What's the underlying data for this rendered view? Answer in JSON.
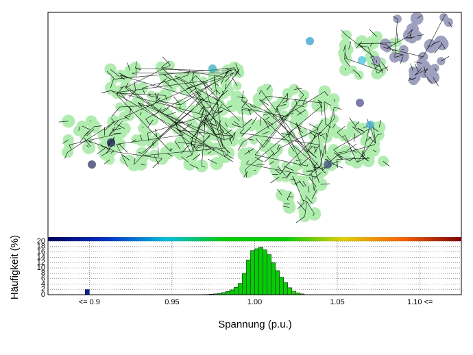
{
  "chart_data": {
    "type": "histogram",
    "xlabel": "Spannung (p.u.)",
    "ylabel": "Häufigkeit (%)",
    "bins": [
      0.8975,
      0.9,
      0.9025,
      0.905,
      0.9075,
      0.91,
      0.9125,
      0.915,
      0.9175,
      0.92,
      0.9225,
      0.925,
      0.9275,
      0.93,
      0.9325,
      0.935,
      0.9375,
      0.94,
      0.9425,
      0.945,
      0.9475,
      0.95,
      0.9525,
      0.955,
      0.9575,
      0.96,
      0.9625,
      0.965,
      0.9675,
      0.97,
      0.9725,
      0.975,
      0.9775,
      0.98,
      0.9825,
      0.985,
      0.9875,
      0.99,
      0.9925,
      0.995,
      0.9975,
      1,
      1.0025,
      1.005,
      1.0075,
      1.01,
      1.0125,
      1.015,
      1.0175,
      1.02,
      1.0225,
      1.025,
      1.0275,
      1.03,
      1.0325
    ],
    "values": [
      1.9,
      0,
      0,
      0,
      0,
      0,
      0,
      0,
      0,
      0,
      0,
      0,
      0,
      0,
      0,
      0,
      0,
      0,
      0,
      0,
      0,
      0.02,
      0.02,
      0.03,
      0.03,
      0.04,
      0.05,
      0.06,
      0.08,
      0.1,
      0.2,
      0.3,
      0.5,
      0.8,
      1.2,
      1.8,
      2.8,
      4.2,
      8,
      13,
      16.5,
      17.2,
      17.8,
      16.8,
      15,
      12,
      9,
      6.5,
      4.5,
      2.6,
      1.3,
      0.7,
      0.3,
      0.05
    ],
    "colormap": [
      "#000060",
      "#0030d0",
      "#00c0e0",
      "#00d000",
      "#00d000",
      "#e0d000",
      "#ff6000",
      "#800000"
    ],
    "xlim": [
      0.875,
      1.125
    ],
    "xticks": [
      {
        "value": 0.9,
        "label": "<= 0.9"
      },
      0.95,
      {
        "value": 1,
        "label": "1.00"
      },
      1.05,
      {
        "value": 1.1,
        "label": "1.10 <="
      }
    ],
    "ylim": [
      0,
      20
    ],
    "yticks": [
      0,
      2,
      4,
      6,
      8,
      10,
      12,
      14,
      16,
      18,
      20
    ],
    "grid": true
  }
}
